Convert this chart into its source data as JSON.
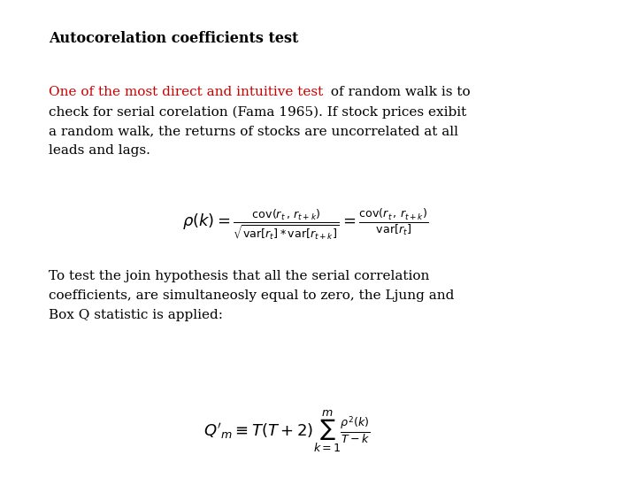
{
  "title": "Autocorelation coefficients test",
  "title_fontsize": 11.5,
  "red_text": "One of the most direct and intuitive test",
  "black_text_cont": " of random walk is to",
  "paragraph1_line2": "check for serial corelation (Fama 1965). If stock prices exibit",
  "paragraph1_line3": "a random walk, the returns of stocks are uncorrelated at all",
  "paragraph1_line4": "leads and lags.",
  "formula1": "\\rho(k) = \\frac{\\mathrm{cov}(r_t\\,,\\,r_{t+k})}{\\sqrt{\\mathrm{var}[r_t]*\\mathrm{var}[r_{t+k}]}} = \\frac{\\mathrm{cov}(r_t\\,,\\,r_{t+k})}{\\mathrm{var}[r_t]}",
  "paragraph2_line1": "To test the join hypothesis that all the serial correlation",
  "paragraph2_line2": "coefficients, are simultaneosly equal to zero, the Ljung and",
  "paragraph2_line3": "Box Q statistic is applied:",
  "formula2": "Q'_m \\equiv T(T+2)\\sum_{k=1}^{m}\\frac{\\rho^2(k)}{T-k}",
  "bg_color": "#ffffff",
  "text_color": "#000000",
  "red_color": "#cc0000",
  "font_family": "serif",
  "body_fontsize": 11.0,
  "formula_fontsize": 13
}
